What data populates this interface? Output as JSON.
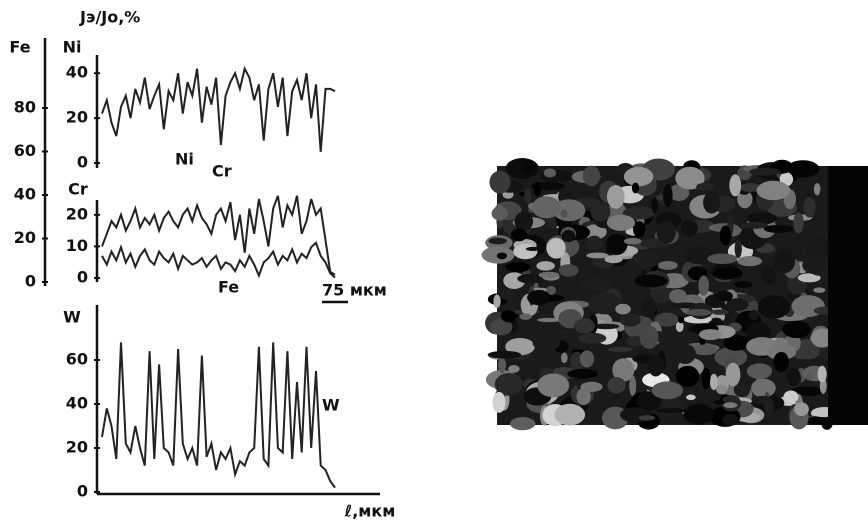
{
  "chart_data": [
    {
      "type": "line",
      "title": "Jэ/Jо,%",
      "y_label": "Ni",
      "ylim": [
        0,
        45
      ],
      "yticks": [
        0,
        20,
        40
      ],
      "series": [
        {
          "name": "Ni",
          "color": "#222222",
          "values": [
            22,
            28,
            18,
            12,
            25,
            30,
            20,
            33,
            27,
            38,
            24,
            30,
            35,
            15,
            32,
            28,
            40,
            22,
            36,
            30,
            42,
            18,
            34,
            26,
            38,
            8,
            30,
            36,
            40,
            33,
            42,
            38,
            28,
            35,
            10,
            33,
            40,
            25,
            38,
            12,
            32,
            37,
            28,
            40,
            20,
            35,
            5,
            33,
            33,
            32
          ]
        }
      ]
    },
    {
      "type": "line",
      "y_label": "Cr",
      "ylim": [
        0,
        25
      ],
      "yticks": [
        0,
        10,
        20
      ],
      "y2_label": "Fe",
      "y2lim": [
        0,
        100
      ],
      "y2ticks": [
        0,
        20,
        40,
        60,
        80
      ],
      "scale_bar": "75 мкм",
      "series": [
        {
          "name": "Cr",
          "color": "#222222",
          "values": [
            10,
            14,
            18,
            16,
            20,
            15,
            18,
            22,
            16,
            19,
            17,
            20,
            15,
            19,
            21,
            18,
            16,
            20,
            22,
            18,
            23,
            19,
            17,
            14,
            20,
            22,
            18,
            24,
            12,
            20,
            8,
            22,
            14,
            25,
            18,
            10,
            22,
            26,
            16,
            23,
            20,
            26,
            14,
            18,
            25,
            20,
            22,
            12,
            2,
            1
          ]
        },
        {
          "name": "Fe",
          "color": "#222222",
          "axis": "y2",
          "values": [
            12,
            8,
            14,
            10,
            16,
            9,
            13,
            7,
            12,
            15,
            10,
            8,
            14,
            11,
            9,
            13,
            6,
            12,
            10,
            8,
            9,
            11,
            7,
            10,
            12,
            6,
            9,
            8,
            5,
            10,
            7,
            12,
            8,
            3,
            9,
            11,
            14,
            8,
            12,
            10,
            15,
            9,
            13,
            11,
            16,
            18,
            12,
            9,
            4,
            2
          ]
        }
      ]
    },
    {
      "type": "line",
      "y_label": "W",
      "x_label": "ℓ,мкм",
      "ylim": [
        0,
        80
      ],
      "yticks": [
        0,
        20,
        40,
        60
      ],
      "series": [
        {
          "name": "W",
          "color": "#222222",
          "values": [
            25,
            38,
            30,
            15,
            68,
            22,
            18,
            30,
            20,
            12,
            64,
            15,
            58,
            20,
            18,
            12,
            65,
            22,
            15,
            20,
            12,
            62,
            16,
            22,
            10,
            18,
            15,
            20,
            8,
            14,
            12,
            18,
            20,
            66,
            15,
            12,
            68,
            20,
            18,
            64,
            15,
            50,
            18,
            66,
            20,
            55,
            12,
            10,
            5,
            2
          ]
        }
      ]
    }
  ]
}
